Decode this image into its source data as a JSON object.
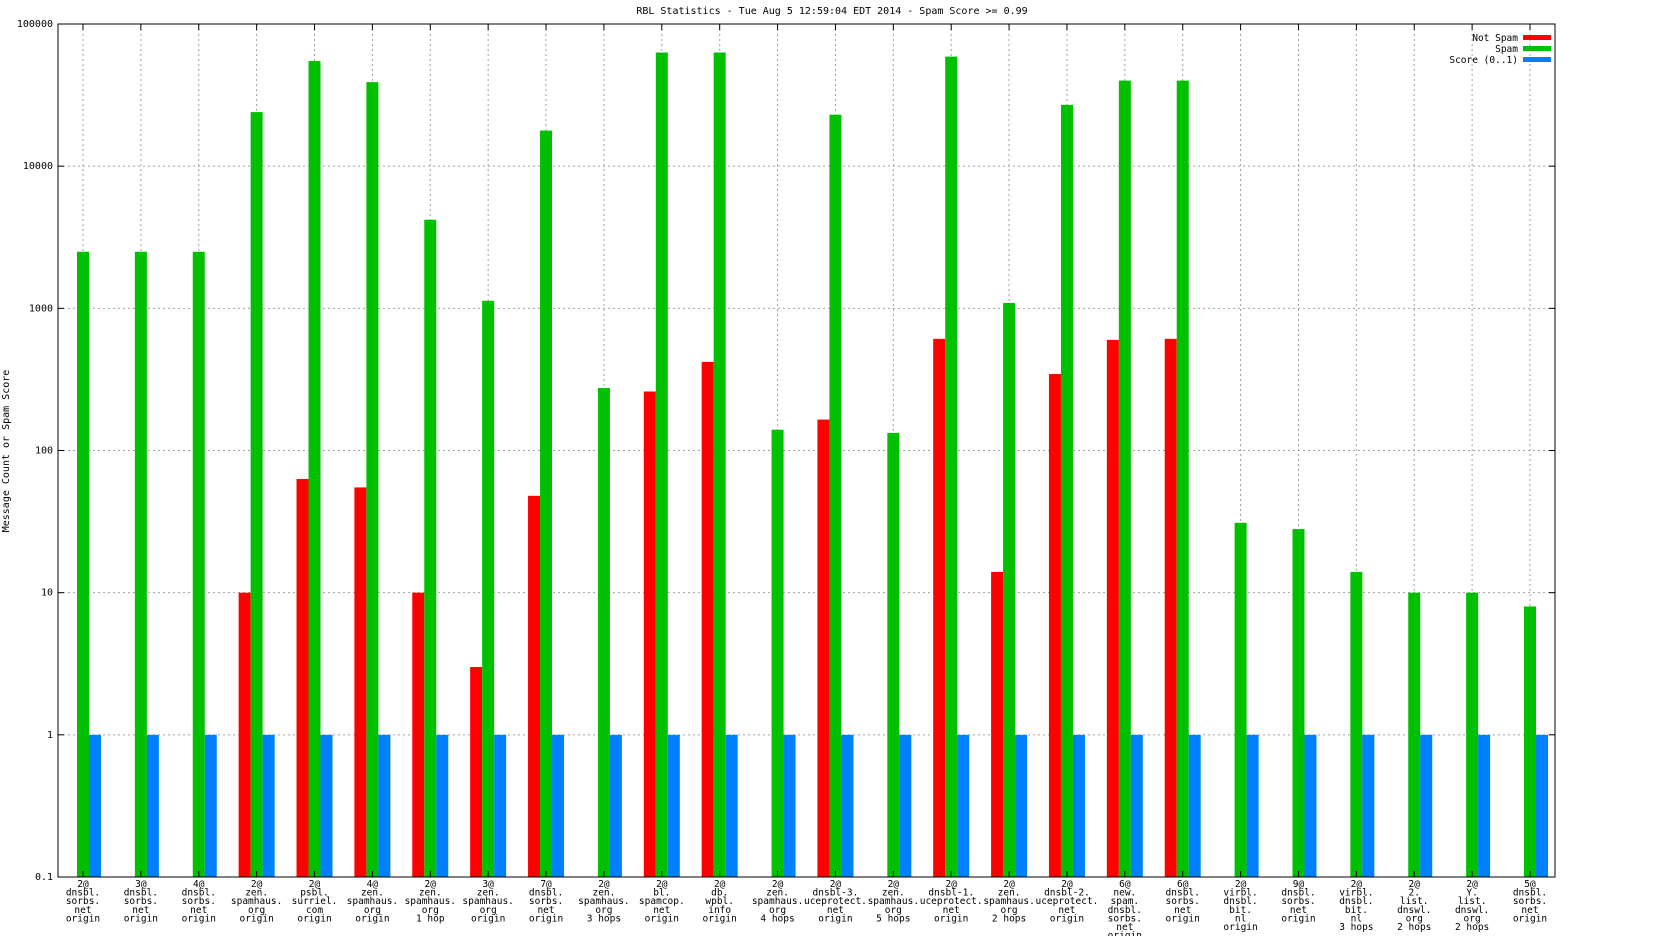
{
  "chart_data": {
    "type": "bar",
    "title": "RBL Statistics - Tue Aug  5 12:59:04 EDT 2014 - Spam Score >= 0.99",
    "xlabel": "",
    "ylabel": "Message Count or Spam Score",
    "yscale": "log",
    "ylim": [
      0.1,
      100000
    ],
    "yticks": [
      "0.1",
      "1",
      "10",
      "100",
      "1000",
      "10000",
      "100000"
    ],
    "grid": true,
    "legend_position": "top-right",
    "colors": {
      "Not Spam": "#ff0000",
      "Spam": "#00c000",
      "Score (0..1)": "#0080ff"
    },
    "categories": [
      [
        "2@",
        "dnsbl.",
        "sorbs.",
        "net",
        "origin"
      ],
      [
        "3@",
        "dnsbl.",
        "sorbs.",
        "net",
        "origin"
      ],
      [
        "4@",
        "dnsbl.",
        "sorbs.",
        "net",
        "origin"
      ],
      [
        "2@",
        "zen.",
        "spamhaus.",
        "org",
        "origin"
      ],
      [
        "2@",
        "psbl.",
        "surriel.",
        "com",
        "origin"
      ],
      [
        "4@",
        "zen.",
        "spamhaus.",
        "org",
        "origin"
      ],
      [
        "2@",
        "zen.",
        "spamhaus.",
        "org",
        "1 hop"
      ],
      [
        "3@",
        "zen.",
        "spamhaus.",
        "org",
        "origin"
      ],
      [
        "7@",
        "dnsbl.",
        "sorbs.",
        "net",
        "origin"
      ],
      [
        "2@",
        "zen.",
        "spamhaus.",
        "org",
        "3 hops"
      ],
      [
        "2@",
        "bl.",
        "spamcop.",
        "net",
        "origin"
      ],
      [
        "2@",
        "db.",
        "wpbl.",
        "info",
        "origin"
      ],
      [
        "2@",
        "zen.",
        "spamhaus.",
        "org",
        "4 hops"
      ],
      [
        "2@",
        "dnsbl-3.",
        "uceprotect.",
        "net",
        "origin"
      ],
      [
        "2@",
        "zen.",
        "spamhaus.",
        "org",
        "5 hops"
      ],
      [
        "2@",
        "dnsbl-1.",
        "uceprotect.",
        "net",
        "origin"
      ],
      [
        "2@",
        "zen.",
        "spamhaus.",
        "org",
        "2 hops"
      ],
      [
        "2@",
        "dnsbl-2.",
        "uceprotect.",
        "net",
        "origin"
      ],
      [
        "6@",
        "new.",
        "spam.",
        "dnsbl.",
        "sorbs.",
        "net",
        "origin"
      ],
      [
        "6@",
        "dnsbl.",
        "sorbs.",
        "net",
        "origin"
      ],
      [
        "2@",
        "virbl.",
        "dnsbl.",
        "bit.",
        "nl",
        "origin"
      ],
      [
        "9@",
        "dnsbl.",
        "sorbs.",
        "net",
        "origin"
      ],
      [
        "2@",
        "virbl.",
        "dnsbl.",
        "bit.",
        "nl",
        "3 hops"
      ],
      [
        "2@",
        "2.",
        "list.",
        "dnswl.",
        "org",
        "2 hops"
      ],
      [
        "2@",
        "Y.",
        "list.",
        "dnswl.",
        "org",
        "2 hops"
      ],
      [
        "5@",
        "dnsbl.",
        "sorbs.",
        "net",
        "origin"
      ]
    ],
    "series": [
      {
        "name": "Not Spam",
        "values": [
          null,
          null,
          null,
          10,
          63,
          55,
          10,
          3,
          48,
          null,
          260,
          420,
          null,
          165,
          null,
          610,
          14,
          345,
          600,
          610,
          null,
          null,
          null,
          null,
          null,
          null
        ]
      },
      {
        "name": "Spam",
        "values": [
          2500,
          2500,
          2500,
          24000,
          55000,
          39000,
          4200,
          1130,
          17800,
          275,
          63000,
          63000,
          140,
          23000,
          133,
          59000,
          1090,
          27000,
          40000,
          40000,
          31,
          28,
          14,
          10,
          10,
          8
        ]
      },
      {
        "name": "Score (0..1)",
        "values": [
          1,
          1,
          1,
          1,
          1,
          1,
          1,
          1,
          1,
          1,
          1,
          1,
          1,
          1,
          1,
          1,
          1,
          1,
          1,
          1,
          1,
          1,
          1,
          1,
          1,
          1
        ]
      }
    ]
  }
}
